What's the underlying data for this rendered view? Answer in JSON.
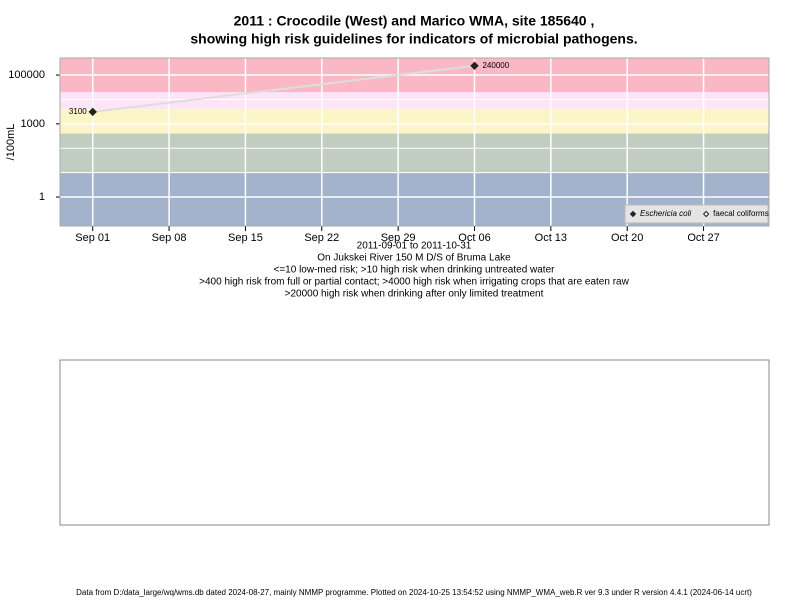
{
  "chart_data": {
    "type": "line",
    "title": "2011 : Crocodile (West) and Marico WMA, site 185640 ,",
    "subtitle": "showing high risk guidelines for indicators of microbial pathogens.",
    "y_label": "/100mL",
    "x_label": "2011-09-01 to 2011-10-31",
    "location": "On Jukskei River 150 M D/S of Bruma Lake",
    "guidelines": [
      "<=10 low-med risk; >10 high risk when drinking untreated water",
      ">400 high risk from full or partial contact; >4000 high risk when irrigating crops that are eaten raw",
      ">20000 high risk when drinking after only limited treatment"
    ],
    "footer": "Data from D:/data_large/wq/wms.db dated 2024-08-27, mainly NMMP programme. Plotted on 2024-10-25 13:54:52 using NMMP_WMA_web.R ver 9.3 under R version 4.4.1 (2024-06-14 ucrt)",
    "log_y": true,
    "grid": true,
    "legend_position": "bottom-right",
    "x": [
      "2011-09-01",
      "2011-10-06"
    ],
    "series": [
      {
        "name": "Eschericia coli",
        "color": "#222222",
        "values": [
          3100,
          240000
        ]
      },
      {
        "name": "faecal coliforms",
        "color": "#222222",
        "values": [
          null,
          null
        ]
      }
    ],
    "line_color": "#dddddd",
    "band_breaks": [
      10,
      400,
      4000,
      20000
    ],
    "band_colors": [
      "#a3b3cc",
      "#c1cdc1",
      "#fcf5c7",
      "#fde4f6",
      "#f9b8c4"
    ],
    "xlim": [
      "2011-08-29",
      "2011-11-02"
    ],
    "ylim": [
      0.065,
      500000
    ],
    "xticks": [
      {
        "value": "2011-09-01",
        "label": "Sep 01"
      },
      {
        "value": "2011-09-08",
        "label": "Sep 08"
      },
      {
        "value": "2011-09-15",
        "label": "Sep 15"
      },
      {
        "value": "2011-09-22",
        "label": "Sep 22"
      },
      {
        "value": "2011-09-29",
        "label": "Sep 29"
      },
      {
        "value": "2011-10-06",
        "label": "Oct 06"
      },
      {
        "value": "2011-10-13",
        "label": "Oct 13"
      },
      {
        "value": "2011-10-20",
        "label": "Oct 20"
      },
      {
        "value": "2011-10-27",
        "label": "Oct 27"
      }
    ],
    "yticks": [
      1,
      1000,
      100000
    ],
    "minor_ygrid": [
      10,
      100,
      10000
    ]
  }
}
